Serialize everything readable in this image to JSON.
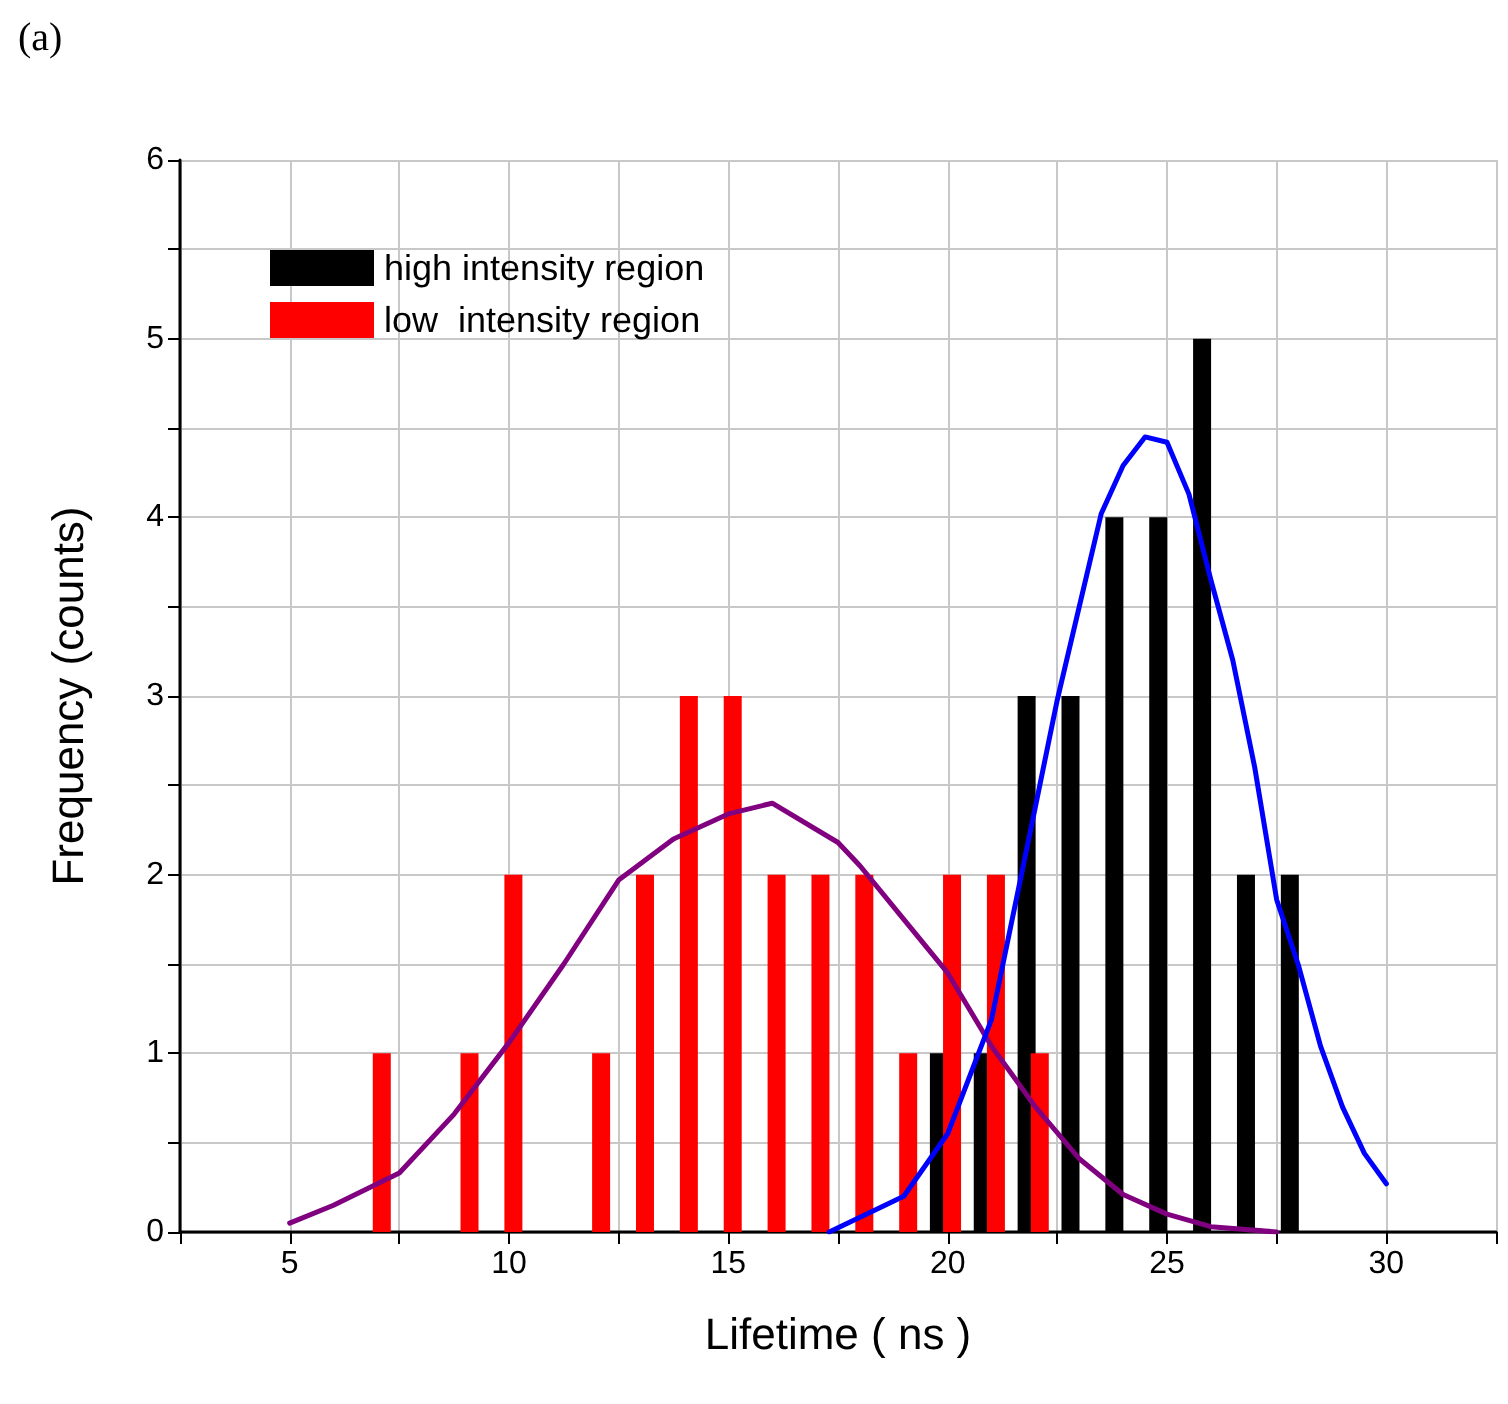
{
  "chart_data": {
    "type": "bar",
    "title": "(a)",
    "xlabel": "Lifetime ( ns )",
    "ylabel": "Frequency (counts)",
    "xlim": [
      2.5,
      32.5
    ],
    "xticks": [
      {
        "value": 2.5,
        "label": null
      },
      5,
      {
        "value": 7.5,
        "label": null
      },
      10,
      {
        "value": 12.5,
        "label": null
      },
      15,
      {
        "value": 17.5,
        "label": null
      },
      20,
      {
        "value": 22.5,
        "label": null
      },
      25,
      {
        "value": 27.5,
        "label": null
      },
      30,
      {
        "value": 32.5,
        "label": null
      }
    ],
    "ylim": [
      0,
      6
    ],
    "yticks": [
      0,
      {
        "value": 0.5,
        "label": null
      },
      1,
      {
        "value": 1.5,
        "label": null
      },
      2,
      {
        "value": 2.5,
        "label": null
      },
      3,
      {
        "value": 3.5,
        "label": null
      },
      4,
      {
        "value": 4.5,
        "label": null
      },
      5,
      {
        "value": 5.5,
        "label": null
      },
      6
    ],
    "grid": true,
    "legend": "top left",
    "series": [
      {
        "name": "high intensity region",
        "color": "#000000",
        "x": [
          19.8,
          20.8,
          21.8,
          22.8,
          23.8,
          24.8,
          25.8,
          26.8,
          27.8
        ],
        "values": [
          1,
          1,
          3,
          3,
          4,
          4,
          5,
          2,
          2
        ]
      },
      {
        "name": "low  intensity region",
        "color": "#ff0000",
        "x": [
          7.1,
          9.1,
          10.1,
          12.1,
          13.1,
          14.1,
          15.1,
          16.1,
          17.1,
          18.1,
          19.1,
          20.1,
          21.1,
          22.1
        ],
        "values": [
          1,
          1,
          2,
          1,
          2,
          3,
          3,
          2,
          2,
          2,
          1,
          2,
          2,
          1
        ]
      },
      {
        "type": "line",
        "color": "#800080",
        "x": [
          5,
          6,
          7.5,
          8.75,
          10,
          11.25,
          12.5,
          13.75,
          15,
          16,
          17.5,
          18,
          19,
          20,
          21,
          22,
          23,
          24,
          25,
          26,
          27.5
        ],
        "values": [
          0.05,
          0.15,
          0.33,
          0.66,
          1.06,
          1.5,
          1.97,
          2.2,
          2.34,
          2.4,
          2.18,
          2.05,
          1.75,
          1.45,
          1.04,
          0.7,
          0.41,
          0.21,
          0.1,
          0.03,
          0
        ]
      },
      {
        "type": "line",
        "color": "#0000ff",
        "x": [
          17.3,
          19,
          20,
          21,
          22,
          22.5,
          23,
          23.5,
          24,
          24.5,
          25,
          25.5,
          26,
          26.5,
          27,
          27.5,
          28,
          28.5,
          29,
          29.5,
          30
        ],
        "values": [
          0,
          0.2,
          0.55,
          1.19,
          2.38,
          2.98,
          3.5,
          4.02,
          4.29,
          4.45,
          4.42,
          4.13,
          3.65,
          3.2,
          2.6,
          1.86,
          1.49,
          1.04,
          0.7,
          0.44,
          0.27
        ]
      }
    ]
  }
}
